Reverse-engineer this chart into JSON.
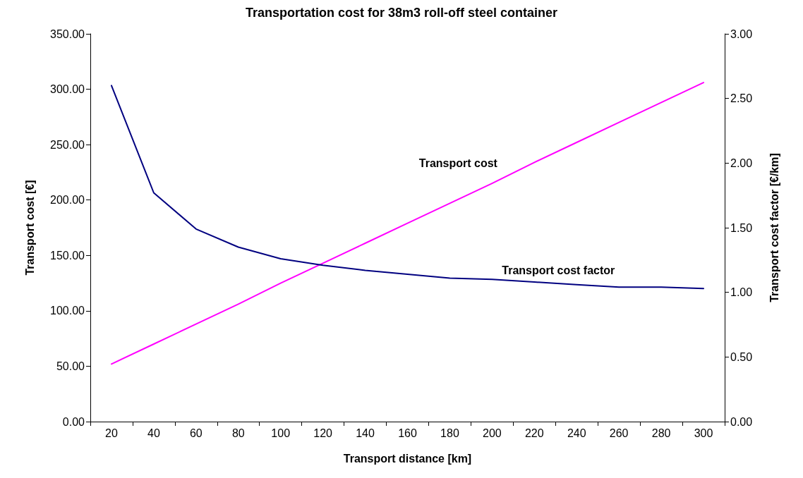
{
  "chart_data": {
    "type": "line",
    "title": "Transportation cost for 38m3 roll-off steel container",
    "xlabel": "Transport distance [km]",
    "ylabel": "Transport cost [€]",
    "y2label": "Transport cost factor [€/km]",
    "categories": [
      "20",
      "40",
      "60",
      "80",
      "100",
      "120",
      "140",
      "160",
      "180",
      "200",
      "220",
      "240",
      "260",
      "280",
      "300"
    ],
    "series": [
      {
        "name": "Transport cost",
        "color": "#ff00ff",
        "values": [
          52,
          70,
          88,
          106,
          125,
          143,
          161,
          179,
          197,
          215,
          234,
          252,
          270,
          288,
          306
        ]
      },
      {
        "name": "Transport cost factor",
        "color": "#000080",
        "axis": "y2",
        "values": [
          2.6,
          1.77,
          1.49,
          1.35,
          1.26,
          1.21,
          1.17,
          1.14,
          1.11,
          1.1,
          1.08,
          1.06,
          1.04,
          1.04,
          1.03
        ]
      }
    ],
    "ylim": [
      0,
      350
    ],
    "yticks": [
      {
        "value": 0,
        "label": "0.00"
      },
      {
        "value": 50,
        "label": "50.00"
      },
      {
        "value": 100,
        "label": "100.00"
      },
      {
        "value": 150,
        "label": "150.00"
      },
      {
        "value": 200,
        "label": "200.00"
      },
      {
        "value": 250,
        "label": "250.00"
      },
      {
        "value": 300,
        "label": "300.00"
      },
      {
        "value": 350,
        "label": "350.00"
      }
    ],
    "y2lim": [
      0,
      3
    ],
    "y2ticks": [
      {
        "value": 0,
        "label": "0.00"
      },
      {
        "value": 0.5,
        "label": "0.50"
      },
      {
        "value": 1,
        "label": "1.00"
      },
      {
        "value": 1.5,
        "label": "1.50"
      },
      {
        "value": 2,
        "label": "2.00"
      },
      {
        "value": 2.5,
        "label": "2.50"
      },
      {
        "value": 3,
        "label": "3.00"
      }
    ],
    "grid": false,
    "legend": false,
    "marker": "none",
    "line_style": "solid"
  }
}
